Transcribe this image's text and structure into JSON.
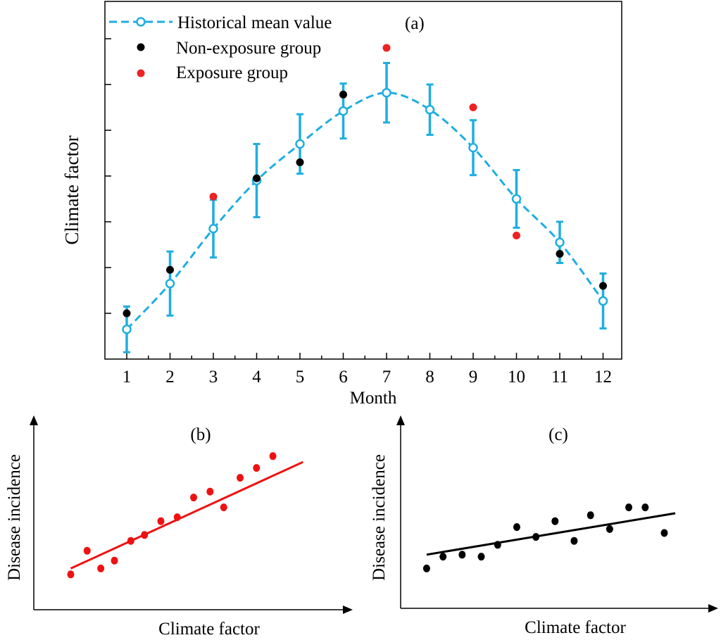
{
  "colors": {
    "mean": "#1eaee0",
    "non_exposure": "#000000",
    "exposure": "#ee2222",
    "fit_b": "#ee1111",
    "fit_c": "#000000",
    "axis": "#000000"
  },
  "chart_data": [
    {
      "id": "a",
      "type": "line",
      "panel_label": "(a)",
      "xlabel": "Month",
      "ylabel": "Climate factor",
      "x": [
        1,
        2,
        3,
        4,
        5,
        6,
        7,
        8,
        9,
        10,
        11,
        12
      ],
      "tick_labels": [
        "1",
        "2",
        "3",
        "4",
        "5",
        "6",
        "7",
        "8",
        "9",
        "10",
        "11",
        "12"
      ],
      "xlim": [
        0.5,
        12.5
      ],
      "ylim": [
        0,
        10
      ],
      "legend": [
        "Historical mean value",
        "Non-exposure group",
        "Exposure group"
      ],
      "series": [
        {
          "name": "Historical mean value",
          "style": "dashed-line-open-circles-errorbars",
          "values": [
            0.65,
            1.65,
            2.85,
            3.9,
            4.7,
            5.42,
            5.82,
            5.45,
            4.62,
            3.5,
            2.55,
            1.27
          ],
          "errors": [
            0.5,
            0.7,
            0.63,
            0.8,
            0.65,
            0.6,
            0.65,
            0.55,
            0.6,
            0.63,
            0.45,
            0.6
          ]
        },
        {
          "name": "Non-exposure group",
          "style": "filled-dots",
          "x": [
            1,
            2,
            4,
            5,
            6,
            11,
            12
          ],
          "values": [
            1.0,
            1.95,
            3.95,
            4.3,
            5.78,
            2.3,
            1.6
          ]
        },
        {
          "name": "Exposure group",
          "style": "filled-dots",
          "x": [
            3,
            7,
            9,
            10
          ],
          "values": [
            3.55,
            6.8,
            5.5,
            2.7
          ]
        }
      ]
    },
    {
      "id": "b",
      "type": "scatter",
      "panel_label": "(b)",
      "xlabel": "Climate factor",
      "ylabel": "Disease incidence",
      "xlim": [
        0,
        10
      ],
      "ylim": [
        0,
        10
      ],
      "x": [
        1.3,
        1.9,
        2.4,
        2.9,
        3.5,
        4.0,
        4.6,
        5.2,
        5.8,
        6.4,
        6.9,
        7.5,
        8.1,
        8.7
      ],
      "values": [
        0.9,
        2.1,
        1.2,
        1.6,
        2.6,
        2.9,
        3.6,
        3.8,
        4.8,
        5.1,
        4.3,
        5.8,
        6.3,
        6.9
      ],
      "fit": {
        "x": [
          1.3,
          9.8
        ],
        "values": [
          1.2,
          6.6
        ]
      }
    },
    {
      "id": "c",
      "type": "scatter",
      "panel_label": "(c)",
      "xlabel": "Climate factor",
      "ylabel": "Disease incidence",
      "xlim": [
        0,
        10
      ],
      "ylim": [
        0,
        10
      ],
      "x": [
        0.9,
        1.5,
        2.2,
        2.9,
        3.5,
        4.2,
        4.9,
        5.6,
        6.3,
        6.9,
        7.6,
        8.3,
        8.9,
        9.6
      ],
      "values": [
        1.2,
        1.8,
        1.9,
        1.8,
        2.4,
        3.3,
        2.8,
        3.6,
        2.6,
        3.9,
        3.2,
        4.3,
        4.3,
        3.0
      ],
      "fit": {
        "x": [
          0.9,
          10.0
        ],
        "values": [
          1.9,
          4.0
        ]
      }
    }
  ]
}
